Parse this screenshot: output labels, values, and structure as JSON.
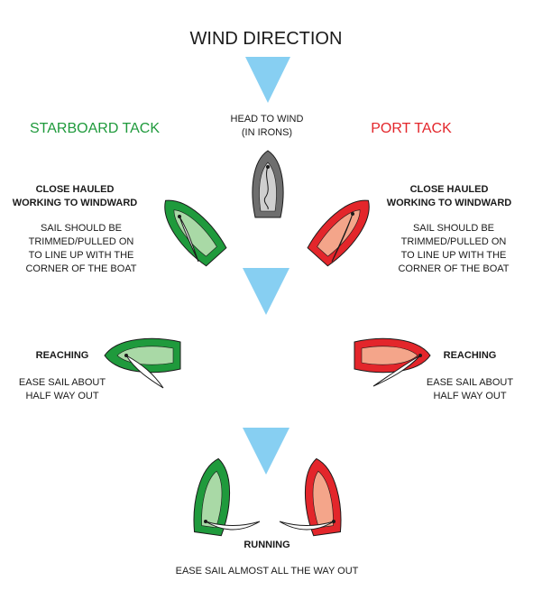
{
  "title": "WIND DIRECTION",
  "head_to_wind": "HEAD TO WIND\n(IN IRONS)",
  "starboard": {
    "label": "STARBOARD TACK",
    "close_hauled_title": "CLOSE HAULED\nWORKING TO WINDWARD",
    "close_hauled_desc": "SAIL SHOULD BE\nTRIMMED/PULLED ON\nTO LINE UP WITH THE\nCORNER OF THE BOAT",
    "reaching_title": "REACHING",
    "reaching_desc": "EASE SAIL ABOUT\nHALF WAY OUT"
  },
  "port": {
    "label": "PORT TACK",
    "close_hauled_title": "CLOSE HAULED\nWORKING TO WINDWARD",
    "close_hauled_desc": "SAIL SHOULD BE\nTRIMMED/PULLED ON\nTO LINE UP WITH THE\nCORNER OF THE BOAT",
    "reaching_title": "REACHING",
    "reaching_desc": "EASE SAIL ABOUT\nHALF WAY OUT"
  },
  "running_title": "RUNNING",
  "running_desc": "EASE SAIL ALMOST ALL THE WAY OUT",
  "colors": {
    "starboard_hull": "#1f9a3c",
    "starboard_deck": "#a9d9a6",
    "port_hull": "#e3262b",
    "port_deck": "#f4a58a",
    "irons_hull": "#6e6e6e",
    "irons_deck": "#cfcfcf",
    "arrow": "#87cff2",
    "starboard_text": "#1f9a3c",
    "port_text": "#e3262b"
  }
}
